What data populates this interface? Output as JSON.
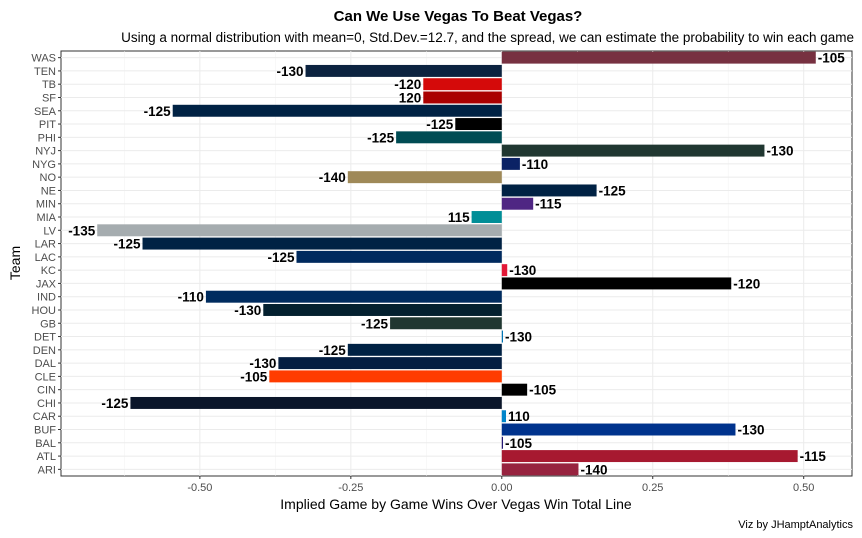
{
  "chart_data": {
    "type": "bar",
    "orientation": "horizontal",
    "title": "Can We Use Vegas To Beat Vegas?",
    "subtitle": "Using a normal distribution with mean=0, Std.Dev.=12.7, and the spread, we can estimate the probability to win each game",
    "xlabel": "Implied Game by Game Wins Over Vegas Win Total Line",
    "ylabel": "Team",
    "caption": "Viz by JHamptAnalytics",
    "xlim": [
      -0.73,
      0.58
    ],
    "xticks": [
      {
        "value": -0.5,
        "label": "-0.50"
      },
      {
        "value": -0.25,
        "label": "-0.25"
      },
      {
        "value": 0,
        "label": "0.00"
      },
      {
        "value": 0.25,
        "label": "0.25"
      },
      {
        "value": 0.5,
        "label": "0.50"
      }
    ],
    "grid": true,
    "bars": [
      {
        "team": "WAS",
        "value": 0.52,
        "label": "-105",
        "color": "#773141"
      },
      {
        "team": "TEN",
        "value": -0.325,
        "label": "-130",
        "color": "#0C2340"
      },
      {
        "team": "TB",
        "value": -0.13,
        "label": "-120",
        "color": "#D50A0A"
      },
      {
        "team": "SF",
        "value": -0.13,
        "label": "120",
        "color": "#AA0000"
      },
      {
        "team": "SEA",
        "value": -0.545,
        "label": "-125",
        "color": "#002244"
      },
      {
        "team": "PIT",
        "value": -0.077,
        "label": "-125",
        "color": "#000000"
      },
      {
        "team": "PHI",
        "value": -0.175,
        "label": "-125",
        "color": "#004C54"
      },
      {
        "team": "NYJ",
        "value": 0.435,
        "label": "-130",
        "color": "#203731"
      },
      {
        "team": "NYG",
        "value": 0.03,
        "label": "-110",
        "color": "#0B2265"
      },
      {
        "team": "NO",
        "value": -0.255,
        "label": "-140",
        "color": "#9F8958"
      },
      {
        "team": "NE",
        "value": 0.157,
        "label": "-125",
        "color": "#002244"
      },
      {
        "team": "MIN",
        "value": 0.052,
        "label": "-115",
        "color": "#4F2683"
      },
      {
        "team": "MIA",
        "value": -0.05,
        "label": "115",
        "color": "#008E97"
      },
      {
        "team": "LV",
        "value": -0.67,
        "label": "-135",
        "color": "#A5ACAF"
      },
      {
        "team": "LAR",
        "value": -0.595,
        "label": "-125",
        "color": "#002244"
      },
      {
        "team": "LAC",
        "value": -0.34,
        "label": "-125",
        "color": "#002A5E"
      },
      {
        "team": "KC",
        "value": 0.009,
        "label": "-130",
        "color": "#E31837"
      },
      {
        "team": "JAX",
        "value": 0.38,
        "label": "-120",
        "color": "#000000"
      },
      {
        "team": "IND",
        "value": -0.49,
        "label": "-110",
        "color": "#002C5F"
      },
      {
        "team": "HOU",
        "value": -0.395,
        "label": "-130",
        "color": "#03202F"
      },
      {
        "team": "GB",
        "value": -0.185,
        "label": "-125",
        "color": "#203731"
      },
      {
        "team": "DET",
        "value": 0.002,
        "label": "-130",
        "color": "#0076B6"
      },
      {
        "team": "DEN",
        "value": -0.255,
        "label": "-125",
        "color": "#002244"
      },
      {
        "team": "DAL",
        "value": -0.37,
        "label": "-130",
        "color": "#041E42"
      },
      {
        "team": "CLE",
        "value": -0.385,
        "label": "-105",
        "color": "#FF3C00"
      },
      {
        "team": "CIN",
        "value": 0.042,
        "label": "-105",
        "color": "#000000"
      },
      {
        "team": "CHI",
        "value": -0.615,
        "label": "-125",
        "color": "#0B162A"
      },
      {
        "team": "CAR",
        "value": 0.007,
        "label": "110",
        "color": "#0085CA"
      },
      {
        "team": "BUF",
        "value": 0.387,
        "label": "-130",
        "color": "#00338D"
      },
      {
        "team": "BAL",
        "value": 0.002,
        "label": "-105",
        "color": "#241773"
      },
      {
        "team": "ATL",
        "value": 0.49,
        "label": "-115",
        "color": "#A71930"
      },
      {
        "team": "ARI",
        "value": 0.127,
        "label": "-140",
        "color": "#97233F"
      }
    ]
  }
}
